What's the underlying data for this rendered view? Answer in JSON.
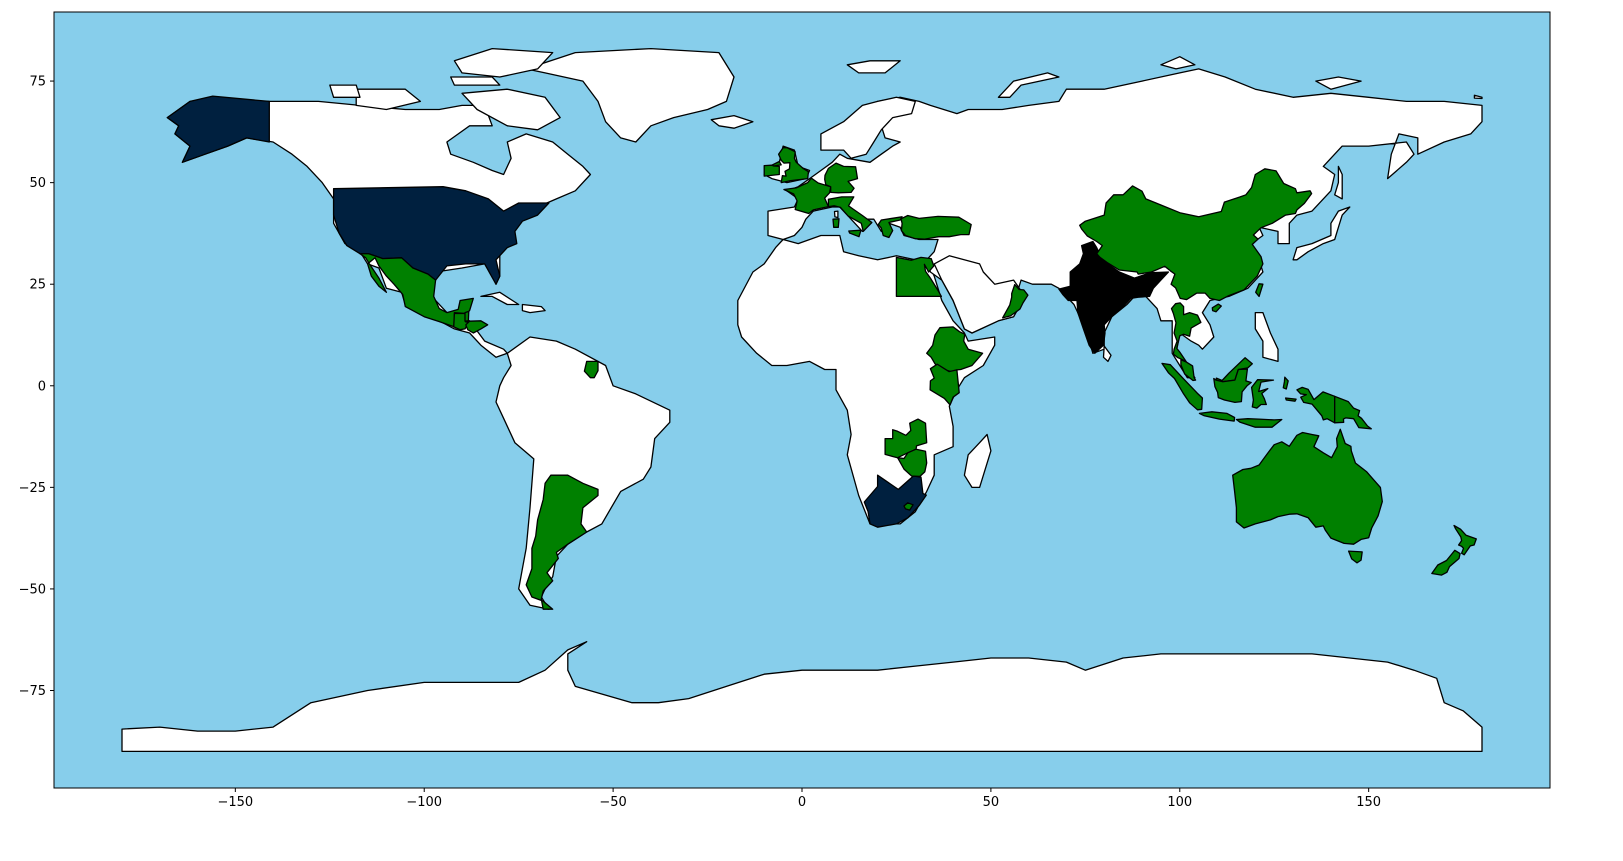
{
  "map": {
    "ocean_color": "#87CEEB",
    "land_color": "#FFFFFF",
    "border_color": "#000000",
    "category_colors": {
      "dark_navy": "#00203F",
      "green": "#008000",
      "black": "#000000"
    },
    "highlighted_countries": {
      "dark_navy": [
        "United States",
        "South Africa"
      ],
      "black": [
        "India"
      ],
      "green": [
        "Mexico",
        "Guatemala",
        "Belize",
        "Honduras",
        "Suriname",
        "Argentina",
        "United Kingdom",
        "Ireland",
        "France",
        "Germany",
        "Italy",
        "Greece",
        "Turkey",
        "Egypt",
        "Ethiopia",
        "Kenya",
        "Zambia",
        "Zimbabwe",
        "Lesotho",
        "Oman",
        "China",
        "Taiwan",
        "Thailand",
        "Malaysia",
        "Indonesia",
        "Papua New Guinea",
        "Australia",
        "New Zealand"
      ]
    }
  },
  "chart_data": {
    "type": "map",
    "projection": "equirectangular (longitude/latitude)",
    "xlim": [
      -198,
      198
    ],
    "ylim": [
      -99,
      92
    ],
    "grid": false,
    "x_ticks": [
      -150,
      -100,
      -50,
      0,
      50,
      100,
      150
    ],
    "y_ticks": [
      -75,
      -50,
      -25,
      0,
      25,
      50,
      75
    ],
    "x_tick_labels": [
      "−150",
      "−100",
      "−50",
      "0",
      "50",
      "100",
      "150"
    ],
    "y_tick_labels": [
      "−75",
      "−50",
      "−25",
      "0",
      "25",
      "50",
      "75"
    ]
  }
}
